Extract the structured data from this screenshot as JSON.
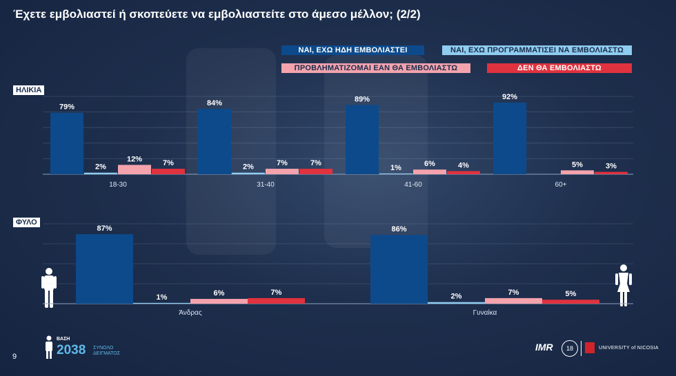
{
  "title": "Έχετε εμβολιαστεί ή σκοπεύετε να εμβολιαστείτε στο άμεσο μέλλον; (2/2)",
  "legend": [
    {
      "label": "ΝΑΙ, ΕΧΩ ΗΔΗ ΕΜΒΟΛΙΑΣΤΕΙ",
      "color": "#0c4a8c",
      "text_color": "#ffffff"
    },
    {
      "label": "ΝΑΙ, ΕΧΩ ΠΡΟΓΡΑΜΜΑΤΙΣΕΙ ΝΑ ΕΜΒΟΛΙΑΣΤΩ",
      "color": "#8fcdf0",
      "text_color": "#1a2c4c"
    },
    {
      "label": "ΠΡΟΒΛΗΜΑΤΙΖΟΜΑΙ ΕΑΝ ΘΑ ΕΜΒΟΛΙΑΣΤΩ",
      "color": "#f4a3ad",
      "text_color": "#1a2c4c"
    },
    {
      "label": "ΔΕΝ ΘΑ ΕΜΒΟΛΙΑΣΤΩ",
      "color": "#e0323f",
      "text_color": "#ffffff"
    }
  ],
  "chart_data": [
    {
      "type": "bar",
      "section_label": "ΗΛΙΚΙΑ",
      "categories": [
        "18-30",
        "31-40",
        "41-60",
        "60+"
      ],
      "series": [
        {
          "name": "ΝΑΙ, ΕΧΩ ΗΔΗ ΕΜΒΟΛΙΑΣΤΕΙ",
          "values": [
            79,
            84,
            89,
            92
          ],
          "labels": [
            "79%",
            "84%",
            "89%",
            "92%"
          ]
        },
        {
          "name": "ΝΑΙ, ΕΧΩ ΠΡΟΓΡΑΜΜΑΤΙΣΕΙ ΝΑ ΕΜΒΟΛΙΑΣΤΩ",
          "values": [
            2,
            2,
            1,
            0
          ],
          "labels": [
            "2%",
            "2%",
            "1%",
            ""
          ]
        },
        {
          "name": "ΠΡΟΒΛΗΜΑΤΙΖΟΜΑΙ ΕΑΝ ΘΑ ΕΜΒΟΛΙΑΣΤΩ",
          "values": [
            12,
            7,
            6,
            5
          ],
          "labels": [
            "12%",
            "7%",
            "6%",
            "5%"
          ]
        },
        {
          "name": "ΔΕΝ ΘΑ ΕΜΒΟΛΙΑΣΤΩ",
          "values": [
            7,
            7,
            4,
            3
          ],
          "labels": [
            "7%",
            "7%",
            "4%",
            "3%"
          ]
        }
      ],
      "ylim": [
        0,
        100
      ],
      "grid": true
    },
    {
      "type": "bar",
      "section_label": "ΦΥΛΟ",
      "categories": [
        "Άνδρας",
        "Γυναίκα"
      ],
      "series": [
        {
          "name": "ΝΑΙ, ΕΧΩ ΗΔΗ ΕΜΒΟΛΙΑΣΤΕΙ",
          "values": [
            87,
            86
          ],
          "labels": [
            "87%",
            "86%"
          ]
        },
        {
          "name": "ΝΑΙ, ΕΧΩ ΠΡΟΓΡΑΜΜΑΤΙΣΕΙ ΝΑ ΕΜΒΟΛΙΑΣΤΩ",
          "values": [
            1,
            2
          ],
          "labels": [
            "1%",
            "2%"
          ]
        },
        {
          "name": "ΠΡΟΒΛΗΜΑΤΙΖΟΜΑΙ ΕΑΝ ΘΑ ΕΜΒΟΛΙΑΣΤΩ",
          "values": [
            6,
            7
          ],
          "labels": [
            "6%",
            "7%"
          ]
        },
        {
          "name": "ΔΕΝ ΘΑ ΕΜΒΟΛΙΑΣΤΩ",
          "values": [
            7,
            5
          ],
          "labels": [
            "7%",
            "5%"
          ]
        }
      ],
      "ylim": [
        0,
        100
      ],
      "grid": true
    }
  ],
  "footer": {
    "page_number": "9",
    "base_label": "ΒΑΣΗ",
    "base_value": "2038",
    "base_sublabel": "ΣΥΝΟΛΟ ΔΕΙΓΜΑΤΟΣ",
    "logo_imr": "IMR",
    "seal_text": "18",
    "university": "UNIVERSITY of NICOSIA"
  }
}
